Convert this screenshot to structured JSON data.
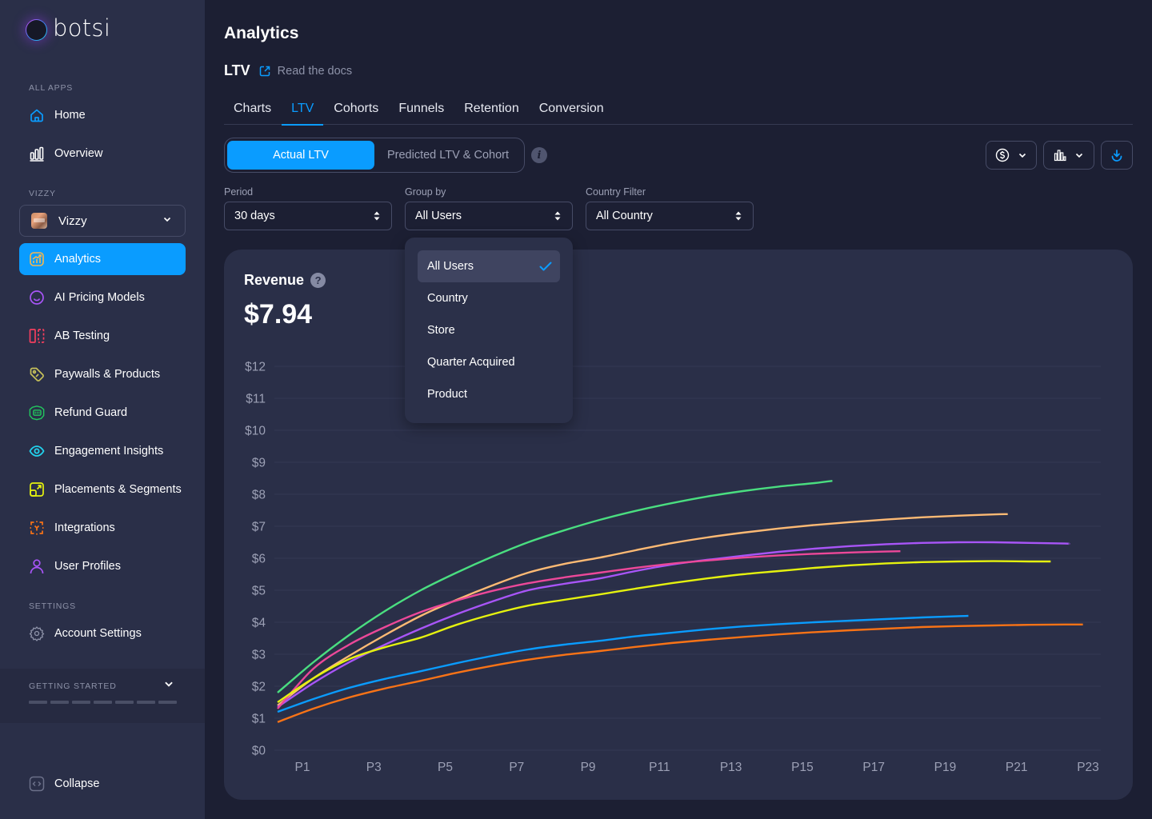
{
  "brand": {
    "name": "botsi"
  },
  "sidebar": {
    "sections": {
      "all_apps": "ALL APPS",
      "app": "VIZZY",
      "settings": "SETTINGS"
    },
    "top_items": [
      {
        "label": "Home",
        "icon": "home-icon",
        "color": "#0a9cff"
      },
      {
        "label": "Overview",
        "icon": "bar-chart-icon",
        "color": "#ffffff"
      }
    ],
    "app_selector": {
      "label": "Vizzy",
      "icon": "app-thumbnail"
    },
    "app_items": [
      {
        "label": "Analytics",
        "icon": "analytics-icon",
        "color": "#f5b74f",
        "active": true
      },
      {
        "label": "AI Pricing Models",
        "icon": "smile-icon",
        "color": "#a855f7"
      },
      {
        "label": "AB Testing",
        "icon": "split-icon",
        "color": "#f43f5e"
      },
      {
        "label": "Paywalls & Products",
        "icon": "tag-icon",
        "color": "#c7c15a"
      },
      {
        "label": "Refund Guard",
        "icon": "shield-icon",
        "color": "#22c55e"
      },
      {
        "label": "Engagement Insights",
        "icon": "eye-icon",
        "color": "#22d3ee"
      },
      {
        "label": "Placements & Segments",
        "icon": "expand-icon",
        "color": "#e5f20f"
      },
      {
        "label": "Integrations",
        "icon": "integrations-icon",
        "color": "#f97316"
      },
      {
        "label": "User Profiles",
        "icon": "user-icon",
        "color": "#a855f7"
      }
    ],
    "settings_items": [
      {
        "label": "Account Settings",
        "icon": "gear-icon",
        "color": "#8d92a8"
      }
    ],
    "getting_started": {
      "label": "GETTING STARTED",
      "steps_total": 7,
      "steps_done": 0
    },
    "collapse_label": "Collapse"
  },
  "main": {
    "title": "Analytics",
    "subtitle": "LTV",
    "docs_link": "Read the docs",
    "tabs": [
      {
        "label": "Charts",
        "active": false
      },
      {
        "label": "LTV",
        "active": true
      },
      {
        "label": "Cohorts",
        "active": false
      },
      {
        "label": "Funnels",
        "active": false
      },
      {
        "label": "Retention",
        "active": false
      },
      {
        "label": "Conversion",
        "active": false
      }
    ],
    "segment": {
      "actual": "Actual LTV",
      "predicted": "Predicted LTV & Cohort",
      "selected": "actual"
    },
    "filters": {
      "period": {
        "label": "Period",
        "value": "30 days"
      },
      "group_by": {
        "label": "Group by",
        "value": "All Users"
      },
      "country": {
        "label": "Country Filter",
        "value": "All Country"
      }
    },
    "group_by_dropdown": {
      "open": true,
      "options": [
        "All Users",
        "Country",
        "Store",
        "Quarter Acquired",
        "Product"
      ],
      "selected": "All Users"
    },
    "card": {
      "title": "Revenue",
      "value": "$7.94"
    }
  },
  "chart_data": {
    "type": "line",
    "title": "Revenue",
    "xlabel": "",
    "ylabel": "",
    "x_tick_labels": [
      "P1",
      "P3",
      "P5",
      "P7",
      "P9",
      "P11",
      "P13",
      "P15",
      "P17",
      "P19",
      "P21",
      "P23"
    ],
    "y_tick_labels": [
      "$0",
      "$1",
      "$2",
      "$3",
      "$4",
      "$5",
      "$6",
      "$7",
      "$8",
      "$9",
      "$10",
      "$11",
      "$12"
    ],
    "ylim": [
      0,
      12
    ],
    "xlim": [
      1,
      24
    ],
    "grid": true,
    "legend": "none",
    "series": [
      {
        "name": "green",
        "color": "#4ade80",
        "x": [
          1,
          2,
          3,
          4,
          5,
          6,
          7,
          8,
          9,
          10,
          11,
          12,
          13,
          14,
          15,
          16,
          16.5
        ],
        "y": [
          1.8,
          2.75,
          3.6,
          4.35,
          5.0,
          5.55,
          6.05,
          6.5,
          6.87,
          7.2,
          7.48,
          7.72,
          7.93,
          8.1,
          8.24,
          8.35,
          8.42
        ]
      },
      {
        "name": "light-orange",
        "color": "#fdba74",
        "x": [
          1,
          2,
          3,
          4,
          5,
          6,
          7,
          8,
          9,
          10,
          11,
          12,
          13,
          14,
          15,
          16,
          17,
          18,
          19,
          20,
          21,
          21.4
        ],
        "y": [
          1.4,
          2.25,
          2.95,
          3.6,
          4.2,
          4.7,
          5.15,
          5.55,
          5.82,
          6.02,
          6.25,
          6.47,
          6.65,
          6.8,
          6.93,
          7.04,
          7.13,
          7.21,
          7.28,
          7.33,
          7.37,
          7.38
        ]
      },
      {
        "name": "purple",
        "color": "#a855f7",
        "x": [
          1,
          2,
          3,
          4,
          5,
          6,
          7,
          8,
          9,
          10,
          11,
          12,
          13,
          14,
          15,
          16,
          17,
          18,
          19,
          20,
          21,
          22,
          23,
          23.1
        ],
        "y": [
          1.35,
          2.1,
          2.75,
          3.3,
          3.8,
          4.25,
          4.65,
          5.0,
          5.2,
          5.37,
          5.6,
          5.8,
          5.95,
          6.08,
          6.2,
          6.3,
          6.38,
          6.44,
          6.48,
          6.5,
          6.5,
          6.48,
          6.46,
          6.45
        ]
      },
      {
        "name": "pink",
        "color": "#ec4899",
        "x": [
          1,
          2,
          3,
          4,
          5,
          6,
          7,
          8,
          9,
          10,
          11,
          12,
          13,
          14,
          15,
          16,
          17,
          18,
          18.4
        ],
        "y": [
          1.3,
          2.55,
          3.3,
          3.85,
          4.32,
          4.68,
          4.98,
          5.22,
          5.4,
          5.55,
          5.7,
          5.83,
          5.93,
          6.02,
          6.09,
          6.14,
          6.18,
          6.21,
          6.22
        ]
      },
      {
        "name": "yellow",
        "color": "#e5f20f",
        "x": [
          1,
          2,
          3,
          4,
          5,
          6,
          7,
          8,
          9,
          10,
          11,
          12,
          13,
          14,
          15,
          16,
          17,
          18,
          19,
          20,
          21,
          22,
          22.6
        ],
        "y": [
          1.5,
          2.25,
          2.85,
          3.22,
          3.52,
          3.92,
          4.25,
          4.52,
          4.7,
          4.87,
          5.05,
          5.22,
          5.37,
          5.5,
          5.6,
          5.7,
          5.78,
          5.84,
          5.88,
          5.9,
          5.91,
          5.9,
          5.9
        ]
      },
      {
        "name": "blue",
        "color": "#0a9cff",
        "x": [
          1,
          2,
          3,
          4,
          5,
          6,
          7,
          8,
          9,
          10,
          11,
          12,
          13,
          14,
          15,
          16,
          17,
          18,
          19,
          20,
          20.3
        ],
        "y": [
          1.2,
          1.6,
          1.95,
          2.23,
          2.47,
          2.72,
          2.95,
          3.15,
          3.3,
          3.42,
          3.56,
          3.67,
          3.78,
          3.87,
          3.94,
          4.0,
          4.05,
          4.1,
          4.15,
          4.19,
          4.2
        ]
      },
      {
        "name": "red-orange",
        "color": "#f97316",
        "x": [
          1,
          2,
          3,
          4,
          5,
          6,
          7,
          8,
          9,
          10,
          11,
          12,
          13,
          14,
          15,
          16,
          17,
          18,
          19,
          20,
          21,
          22,
          23,
          23.5
        ],
        "y": [
          0.88,
          1.3,
          1.65,
          1.93,
          2.17,
          2.42,
          2.64,
          2.83,
          2.98,
          3.1,
          3.23,
          3.35,
          3.45,
          3.54,
          3.62,
          3.69,
          3.75,
          3.8,
          3.85,
          3.88,
          3.9,
          3.92,
          3.93,
          3.93
        ]
      }
    ]
  }
}
